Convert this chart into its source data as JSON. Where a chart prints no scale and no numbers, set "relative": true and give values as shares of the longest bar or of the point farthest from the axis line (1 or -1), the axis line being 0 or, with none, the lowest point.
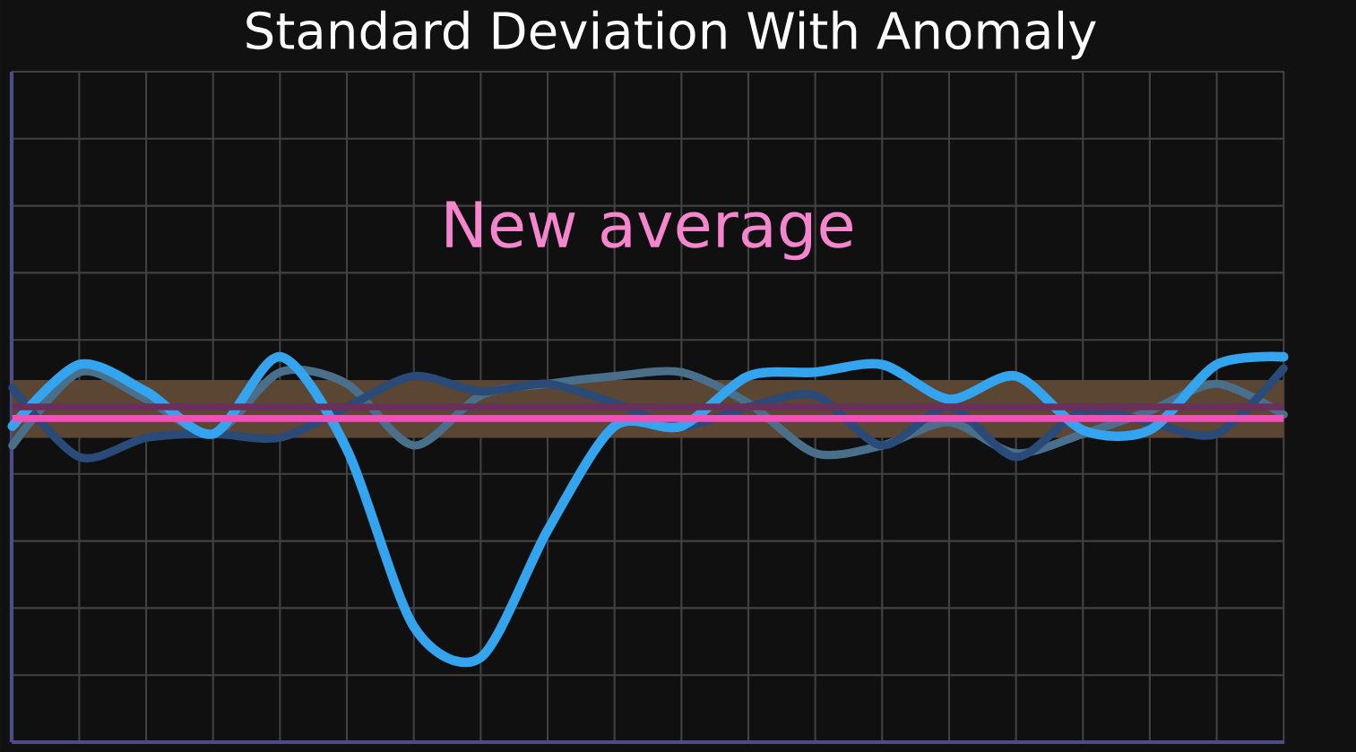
{
  "chart_data": {
    "type": "line",
    "title": "Standard Deviation With Anomaly",
    "relative": true,
    "grid": true,
    "marker": "none",
    "line_style": "solid",
    "categories": [
      null,
      null,
      null,
      null,
      null,
      null,
      null,
      null,
      null,
      null,
      null,
      null,
      null,
      null,
      null,
      null,
      null,
      null,
      null,
      null
    ],
    "series": [
      {
        "color": "#4a6f8a",
        "values": [
          0.77,
          0.96,
          0.89,
          0.8,
          0.96,
          0.93,
          0.77,
          0.9,
          0.93,
          0.95,
          0.96,
          0.88,
          0.75,
          0.77,
          0.83,
          0.75,
          0.8,
          0.86,
          0.93,
          0.85
        ]
      },
      {
        "color": "#2a4a78",
        "values": [
          0.92,
          0.74,
          0.79,
          0.8,
          0.79,
          0.87,
          0.95,
          0.91,
          0.93,
          0.88,
          0.82,
          0.87,
          0.9,
          0.77,
          0.87,
          0.74,
          0.86,
          0.83,
          0.8,
          0.97
        ]
      },
      {
        "color": "#35a4ee",
        "values": [
          0.82,
          0.98,
          0.91,
          0.8,
          1.0,
          0.76,
          0.3,
          0.22,
          0.55,
          0.82,
          0.82,
          0.95,
          0.96,
          0.98,
          0.89,
          0.95,
          0.81,
          0.81,
          0.98,
          1.0
        ]
      }
    ],
    "bands": [
      {
        "axis": "y",
        "from": 0.79,
        "to": 0.94,
        "color": "#5a4632"
      }
    ],
    "ref_lines": [
      {
        "axis": "y",
        "value": 0.87,
        "color": "#6a2f5a"
      },
      {
        "axis": "y",
        "value": 0.84,
        "color": "#f050b8",
        "label": "New average"
      }
    ]
  }
}
